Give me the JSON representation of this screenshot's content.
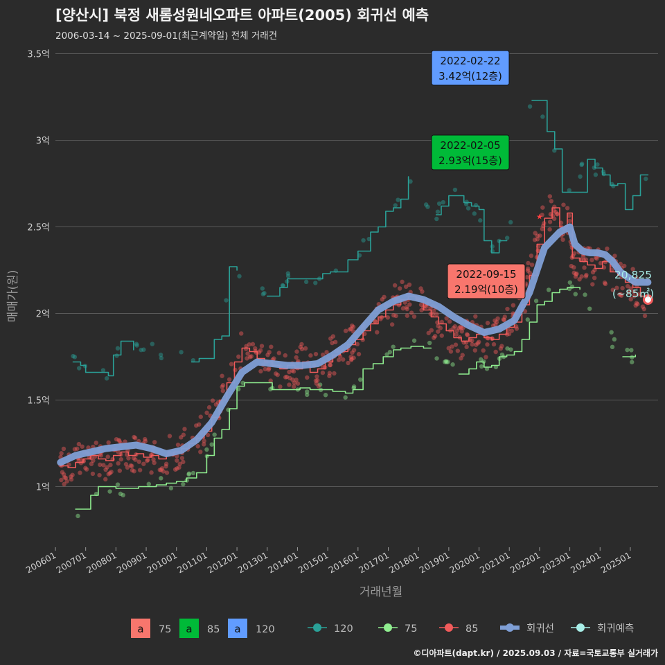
{
  "header": {
    "title": "[양산시] 북정 새롬성원네오파트 아파트(2005) 회귀선 예측",
    "subtitle": "2006-03-14 ~ 2025-09-01(최근계약일) 전체 거래건"
  },
  "caption": "©디아파트(dapt.kr) / 2025.09.03 / 자료=국토교통부 실거래가",
  "colors": {
    "background": "#2b2b2b",
    "grid": "#5a5a5a",
    "s120": "#2aa198",
    "s75": "#90ee90",
    "s85": "#f15b5b",
    "regression": "#7f9fd6",
    "forecast": "#a8eee8",
    "label75": "#f8766d",
    "label85": "#00ba38",
    "label120": "#619cff"
  },
  "chart_data": {
    "type": "line",
    "xlabel": "거래년월",
    "ylabel": "매매가(원)",
    "x_range": [
      "2006-01",
      "2025-12"
    ],
    "ylim": [
      0.65,
      3.55
    ],
    "y_ticks": [
      {
        "value": 1.0,
        "label": "1억"
      },
      {
        "value": 1.5,
        "label": "1.5억"
      },
      {
        "value": 2.0,
        "label": "2억"
      },
      {
        "value": 2.5,
        "label": "2.5억"
      },
      {
        "value": 3.0,
        "label": "3억"
      },
      {
        "value": 3.5,
        "label": "3.5억"
      }
    ],
    "x_ticks": [
      "200601",
      "200701",
      "200801",
      "200901",
      "201001",
      "201101",
      "201201",
      "201301",
      "201401",
      "201501",
      "201601",
      "201701",
      "201801",
      "201901",
      "202001",
      "202101",
      "202201",
      "202301",
      "202401",
      "202501"
    ],
    "grid": true,
    "series": [
      {
        "name": "120",
        "kind": "line",
        "color_key": "s120",
        "points": [
          [
            "2006-08",
            1.72
          ],
          [
            "2006-11",
            1.7
          ],
          [
            "2007-01",
            1.66
          ],
          [
            "2007-06",
            1.66
          ],
          [
            "2007-10",
            1.64
          ],
          [
            "2007-12",
            1.76
          ],
          [
            "2008-03",
            1.84
          ],
          [
            "2008-06",
            1.84
          ],
          [
            "2008-08",
            1.79
          ],
          [
            "2009-04",
            1.79
          ],
          [
            "2010-07",
            1.72
          ],
          [
            "2010-10",
            1.74
          ],
          [
            "2011-01",
            1.74
          ],
          [
            "2011-04",
            1.85
          ],
          [
            "2011-07",
            1.87
          ],
          [
            "2011-10",
            2.27
          ],
          [
            "2012-01",
            2.25
          ],
          [
            "2013-01",
            2.1
          ],
          [
            "2013-06",
            2.15
          ],
          [
            "2013-09",
            2.2
          ],
          [
            "2014-03",
            2.2
          ],
          [
            "2014-08",
            2.2
          ],
          [
            "2014-11",
            2.23
          ],
          [
            "2015-02",
            2.24
          ],
          [
            "2015-05",
            2.24
          ],
          [
            "2015-09",
            2.31
          ],
          [
            "2016-01",
            2.36
          ],
          [
            "2016-06",
            2.47
          ],
          [
            "2016-09",
            2.5
          ],
          [
            "2016-12",
            2.59
          ],
          [
            "2017-03",
            2.61
          ],
          [
            "2017-06",
            2.66
          ],
          [
            "2017-09",
            2.79
          ],
          [
            "2018-08",
            2.57
          ],
          [
            "2018-10",
            2.62
          ],
          [
            "2019-01",
            2.68
          ],
          [
            "2019-04",
            2.68
          ],
          [
            "2019-07",
            2.64
          ],
          [
            "2019-10",
            2.62
          ],
          [
            "2020-01",
            2.6
          ],
          [
            "2020-03",
            2.42
          ],
          [
            "2020-06",
            2.35
          ],
          [
            "2020-09",
            2.42
          ],
          [
            "2020-12",
            2.42
          ],
          [
            "2021-10",
            3.23
          ],
          [
            "2022-01",
            3.23
          ],
          [
            "2022-04",
            3.05
          ],
          [
            "2022-07",
            2.95
          ],
          [
            "2022-10",
            2.7
          ],
          [
            "2023-01",
            2.7
          ],
          [
            "2023-08",
            2.89
          ],
          [
            "2023-11",
            2.84
          ],
          [
            "2024-02",
            2.8
          ],
          [
            "2024-05",
            2.74
          ],
          [
            "2024-08",
            2.75
          ],
          [
            "2024-11",
            2.6
          ],
          [
            "2025-02",
            2.68
          ],
          [
            "2025-05",
            2.8
          ],
          [
            "2025-08",
            2.8
          ]
        ]
      },
      {
        "name": "75",
        "kind": "line",
        "color_key": "s75",
        "points": [
          [
            "2006-09",
            0.87
          ],
          [
            "2006-12",
            0.87
          ],
          [
            "2007-03",
            0.95
          ],
          [
            "2007-06",
            1.0
          ],
          [
            "2008-01",
            0.99
          ],
          [
            "2008-06",
            0.99
          ],
          [
            "2008-10",
            1.0
          ],
          [
            "2009-02",
            1.0
          ],
          [
            "2009-05",
            1.01
          ],
          [
            "2009-09",
            1.02
          ],
          [
            "2010-01",
            1.03
          ],
          [
            "2010-05",
            1.05
          ],
          [
            "2010-09",
            1.08
          ],
          [
            "2011-01",
            1.18
          ],
          [
            "2011-04",
            1.28
          ],
          [
            "2011-07",
            1.33
          ],
          [
            "2011-10",
            1.45
          ],
          [
            "2012-01",
            1.58
          ],
          [
            "2012-04",
            1.6
          ],
          [
            "2012-08",
            1.6
          ],
          [
            "2012-12",
            1.6
          ],
          [
            "2013-03",
            1.56
          ],
          [
            "2013-07",
            1.56
          ],
          [
            "2013-11",
            1.56
          ],
          [
            "2014-02",
            1.57
          ],
          [
            "2014-06",
            1.56
          ],
          [
            "2014-10",
            1.56
          ],
          [
            "2015-03",
            1.55
          ],
          [
            "2015-08",
            1.54
          ],
          [
            "2015-11",
            1.56
          ],
          [
            "2016-03",
            1.68
          ],
          [
            "2016-07",
            1.71
          ],
          [
            "2016-11",
            1.75
          ],
          [
            "2017-03",
            1.79
          ],
          [
            "2017-06",
            1.8
          ],
          [
            "2017-10",
            1.81
          ],
          [
            "2018-03",
            1.8
          ],
          [
            "2018-06",
            1.8
          ],
          [
            "2019-05",
            1.65
          ],
          [
            "2019-09",
            1.68
          ],
          [
            "2019-12",
            1.72
          ],
          [
            "2020-03",
            1.69
          ],
          [
            "2020-06",
            1.7
          ],
          [
            "2020-09",
            1.75
          ],
          [
            "2020-12",
            1.76
          ],
          [
            "2021-03",
            1.78
          ],
          [
            "2021-06",
            1.85
          ],
          [
            "2021-09",
            1.95
          ],
          [
            "2021-12",
            2.05
          ],
          [
            "2022-03",
            2.07
          ],
          [
            "2022-06",
            2.12
          ],
          [
            "2022-09",
            2.14
          ],
          [
            "2022-12",
            2.15
          ],
          [
            "2023-03",
            2.15
          ],
          [
            "2023-05",
            2.14
          ],
          [
            "2024-10",
            1.75
          ],
          [
            "2025-01",
            1.75
          ],
          [
            "2025-03",
            1.76
          ]
        ]
      },
      {
        "name": "85",
        "kind": "line",
        "color_key": "s85",
        "points": [
          [
            "2006-03",
            1.12
          ],
          [
            "2006-06",
            1.11
          ],
          [
            "2006-09",
            1.14
          ],
          [
            "2006-12",
            1.16
          ],
          [
            "2007-03",
            1.18
          ],
          [
            "2007-06",
            1.16
          ],
          [
            "2007-09",
            1.15
          ],
          [
            "2007-12",
            1.18
          ],
          [
            "2008-03",
            1.2
          ],
          [
            "2008-06",
            1.18
          ],
          [
            "2008-09",
            1.19
          ],
          [
            "2008-12",
            1.17
          ],
          [
            "2009-03",
            1.18
          ],
          [
            "2009-06",
            1.16
          ],
          [
            "2009-09",
            1.18
          ],
          [
            "2009-12",
            1.2
          ],
          [
            "2010-03",
            1.22
          ],
          [
            "2010-06",
            1.25
          ],
          [
            "2010-09",
            1.28
          ],
          [
            "2010-12",
            1.32
          ],
          [
            "2011-03",
            1.4
          ],
          [
            "2011-06",
            1.5
          ],
          [
            "2011-09",
            1.6
          ],
          [
            "2011-12",
            1.72
          ],
          [
            "2012-03",
            1.8
          ],
          [
            "2012-06",
            1.78
          ],
          [
            "2012-09",
            1.74
          ],
          [
            "2012-12",
            1.72
          ],
          [
            "2013-03",
            1.7
          ],
          [
            "2013-06",
            1.68
          ],
          [
            "2013-09",
            1.7
          ],
          [
            "2013-12",
            1.68
          ],
          [
            "2014-03",
            1.72
          ],
          [
            "2014-06",
            1.66
          ],
          [
            "2014-09",
            1.68
          ],
          [
            "2014-12",
            1.72
          ],
          [
            "2015-03",
            1.76
          ],
          [
            "2015-06",
            1.78
          ],
          [
            "2015-09",
            1.82
          ],
          [
            "2015-12",
            1.85
          ],
          [
            "2016-03",
            1.9
          ],
          [
            "2016-06",
            1.94
          ],
          [
            "2016-09",
            1.98
          ],
          [
            "2016-12",
            2.02
          ],
          [
            "2017-03",
            2.05
          ],
          [
            "2017-06",
            2.08
          ],
          [
            "2017-09",
            2.1
          ],
          [
            "2017-12",
            2.08
          ],
          [
            "2018-03",
            2.02
          ],
          [
            "2018-06",
            1.98
          ],
          [
            "2018-09",
            1.94
          ],
          [
            "2018-12",
            1.9
          ],
          [
            "2019-03",
            1.86
          ],
          [
            "2019-06",
            1.84
          ],
          [
            "2019-09",
            1.86
          ],
          [
            "2019-12",
            1.88
          ],
          [
            "2020-03",
            1.86
          ],
          [
            "2020-06",
            1.85
          ],
          [
            "2020-09",
            1.88
          ],
          [
            "2020-12",
            1.92
          ],
          [
            "2021-03",
            1.95
          ],
          [
            "2021-06",
            2.05
          ],
          [
            "2021-09",
            2.22
          ],
          [
            "2021-12",
            2.4
          ],
          [
            "2022-03",
            2.55
          ],
          [
            "2022-06",
            2.61
          ],
          [
            "2022-09",
            2.5
          ],
          [
            "2022-12",
            2.58
          ],
          [
            "2023-02",
            2.32
          ],
          [
            "2023-05",
            2.3
          ],
          [
            "2023-08",
            2.28
          ],
          [
            "2023-11",
            2.26
          ],
          [
            "2024-02",
            2.3
          ],
          [
            "2024-05",
            2.24
          ],
          [
            "2024-08",
            2.22
          ],
          [
            "2024-11",
            2.18
          ],
          [
            "2025-02",
            2.15
          ],
          [
            "2025-05",
            2.1
          ],
          [
            "2025-08",
            2.08
          ]
        ]
      },
      {
        "name": "회귀선",
        "kind": "regression",
        "color_key": "regression",
        "points": [
          [
            "2006-03",
            1.14
          ],
          [
            "2006-09",
            1.18
          ],
          [
            "2007-03",
            1.2
          ],
          [
            "2007-09",
            1.22
          ],
          [
            "2008-03",
            1.23
          ],
          [
            "2008-09",
            1.24
          ],
          [
            "2009-03",
            1.22
          ],
          [
            "2009-09",
            1.19
          ],
          [
            "2010-03",
            1.21
          ],
          [
            "2010-09",
            1.27
          ],
          [
            "2011-03",
            1.37
          ],
          [
            "2011-09",
            1.52
          ],
          [
            "2012-03",
            1.66
          ],
          [
            "2012-09",
            1.72
          ],
          [
            "2013-03",
            1.71
          ],
          [
            "2013-09",
            1.7
          ],
          [
            "2014-03",
            1.7
          ],
          [
            "2014-09",
            1.71
          ],
          [
            "2015-03",
            1.76
          ],
          [
            "2015-09",
            1.82
          ],
          [
            "2016-03",
            1.92
          ],
          [
            "2016-09",
            2.02
          ],
          [
            "2017-03",
            2.07
          ],
          [
            "2017-09",
            2.1
          ],
          [
            "2018-03",
            2.08
          ],
          [
            "2018-09",
            2.04
          ],
          [
            "2019-03",
            1.98
          ],
          [
            "2019-09",
            1.93
          ],
          [
            "2020-03",
            1.89
          ],
          [
            "2020-09",
            1.91
          ],
          [
            "2021-03",
            1.96
          ],
          [
            "2021-09",
            2.12
          ],
          [
            "2022-03",
            2.38
          ],
          [
            "2022-09",
            2.47
          ],
          [
            "2023-01",
            2.5
          ],
          [
            "2023-03",
            2.4
          ],
          [
            "2023-06",
            2.36
          ],
          [
            "2023-09",
            2.35
          ],
          [
            "2023-12",
            2.35
          ],
          [
            "2024-03",
            2.34
          ],
          [
            "2024-06",
            2.3
          ],
          [
            "2024-09",
            2.24
          ],
          [
            "2024-12",
            2.21
          ],
          [
            "2025-03",
            2.18
          ],
          [
            "2025-08",
            2.18
          ]
        ]
      }
    ],
    "scatter_note": "개별 거래건 산점도 (75/85/120)",
    "annotations": [
      {
        "date": "2022-02-22",
        "price": "3.42억(12층)",
        "color_key": "label120",
        "anchor": [
          "2022-02",
          3.42
        ]
      },
      {
        "date": "2022-02-05",
        "price": "2.93억(15층)",
        "color_key": "label85",
        "anchor": [
          "2022-02",
          2.93
        ]
      },
      {
        "date": "2022-09-15",
        "price": "2.19억(10층)",
        "color_key": "label75",
        "anchor": [
          "2022-09",
          2.19
        ]
      }
    ],
    "forecast": {
      "value_label": "20,825",
      "unit_label": "(~85㎡)",
      "point": [
        "2025-08",
        2.08
      ]
    },
    "legend": {
      "label_items": [
        {
          "key": "a",
          "text": "75",
          "color_key": "label75"
        },
        {
          "key": "a",
          "text": "85",
          "color_key": "label85"
        },
        {
          "key": "a",
          "text": "120",
          "color_key": "label120"
        }
      ],
      "line_items": [
        {
          "text": "120",
          "color_key": "s120"
        },
        {
          "text": "75",
          "color_key": "s75"
        },
        {
          "text": "85",
          "color_key": "s85"
        },
        {
          "text": "회귀선",
          "color_key": "regression"
        },
        {
          "text": "회귀예측",
          "color_key": "forecast"
        }
      ],
      "placement": "bottom"
    }
  }
}
